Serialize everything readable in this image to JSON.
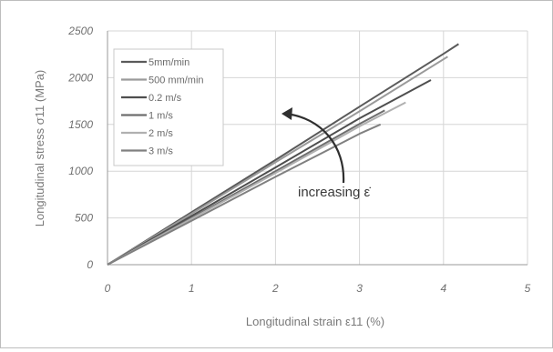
{
  "chart_data": {
    "type": "line",
    "xlabel": "Longitudinal strain ε11 (%)",
    "ylabel": "Longitudinal stress σ11 (MPa)",
    "xlim": [
      0,
      5
    ],
    "ylim": [
      0,
      2500
    ],
    "x_ticks": [
      "0",
      "1",
      "2",
      "3",
      "4",
      "5"
    ],
    "y_ticks": [
      "0",
      "500",
      "1000",
      "1500",
      "2000",
      "2500"
    ],
    "grid": true,
    "legend_position": "top-left",
    "annotation": "increasing ε̇",
    "series": [
      {
        "name": "5mm/min",
        "color": "#5a5a5a",
        "x": [
          0,
          1,
          2,
          3,
          4,
          4.18
        ],
        "y": [
          0,
          560,
          1120,
          1690,
          2255,
          2360
        ]
      },
      {
        "name": "500 mm/min",
        "color": "#9a9a9a",
        "x": [
          0,
          1,
          2,
          3,
          4.05
        ],
        "y": [
          0,
          545,
          1095,
          1640,
          2225
        ]
      },
      {
        "name": "0.2 m/s",
        "color": "#4e4e4e",
        "x": [
          0,
          1,
          2,
          3,
          3.85
        ],
        "y": [
          0,
          520,
          1040,
          1565,
          1975
        ]
      },
      {
        "name": "1 m/s",
        "color": "#6e6e6e",
        "x": [
          0,
          1,
          2,
          3,
          3.3
        ],
        "y": [
          0,
          500,
          1000,
          1505,
          1650
        ]
      },
      {
        "name": "2 m/s",
        "color": "#b0b0b0",
        "x": [
          0,
          1,
          2,
          3,
          3.55
        ],
        "y": [
          0,
          490,
          980,
          1480,
          1735
        ]
      },
      {
        "name": "3 m/s",
        "color": "#808080",
        "x": [
          0,
          1,
          2,
          3,
          3.25
        ],
        "y": [
          0,
          470,
          940,
          1400,
          1500
        ]
      }
    ]
  }
}
